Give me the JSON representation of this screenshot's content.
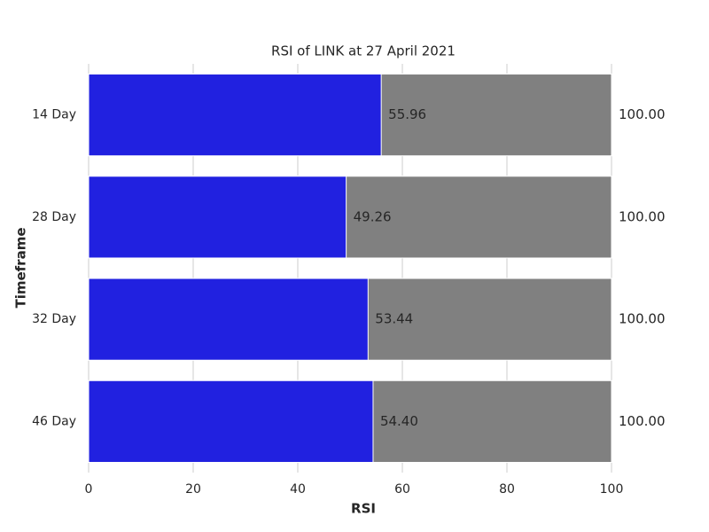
{
  "chart_data": {
    "type": "bar",
    "orientation": "horizontal",
    "title": "RSI of LINK at 27 April 2021",
    "x_label": "RSI",
    "y_label": "Timeframe",
    "categories": [
      "14 Day",
      "28 Day",
      "32 Day",
      "46 Day"
    ],
    "series": [
      {
        "color": "#808080",
        "values": [
          100,
          100,
          100,
          100
        ],
        "value_labels": [
          "100.00",
          "100.00",
          "100.00",
          "100.00"
        ]
      },
      {
        "color": "#2121e0",
        "values": [
          55.96,
          49.26,
          53.44,
          54.4
        ],
        "value_labels": [
          "55.96",
          "49.26",
          "53.44",
          "54.40"
        ]
      }
    ],
    "xlim": [
      0,
      100
    ],
    "xticks": [
      0,
      20,
      40,
      60,
      80,
      100
    ],
    "grid": true
  }
}
